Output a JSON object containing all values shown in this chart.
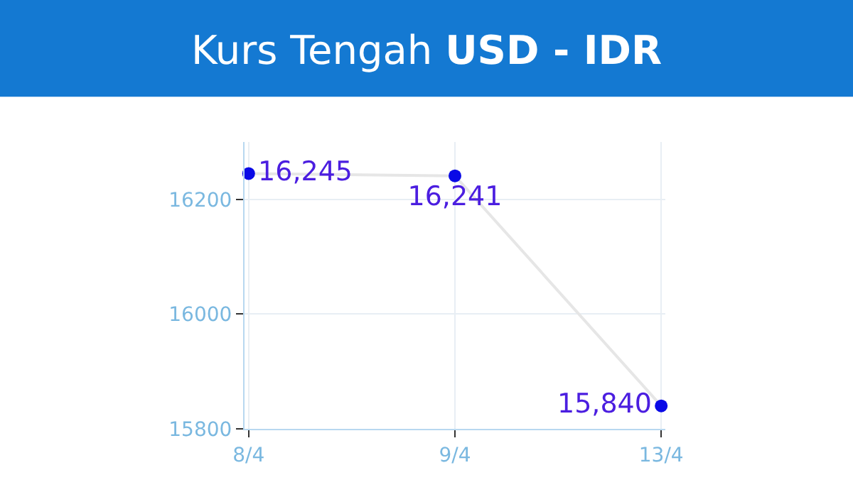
{
  "chart_data": {
    "type": "line",
    "title": "Kurs Tengah USD - IDR",
    "categories": [
      "8/4",
      "9/4",
      "13/4"
    ],
    "series": [
      {
        "color": "#0a0ae6",
        "values": [
          16245,
          16241,
          15840
        ],
        "value_labels": [
          "16,245",
          "16,241",
          "15,840"
        ]
      }
    ],
    "ylim": [
      15800,
      16300
    ],
    "yticks": [
      15800,
      16000,
      16200
    ],
    "grid": true,
    "marker": "circle",
    "line_style": "solid"
  }
}
